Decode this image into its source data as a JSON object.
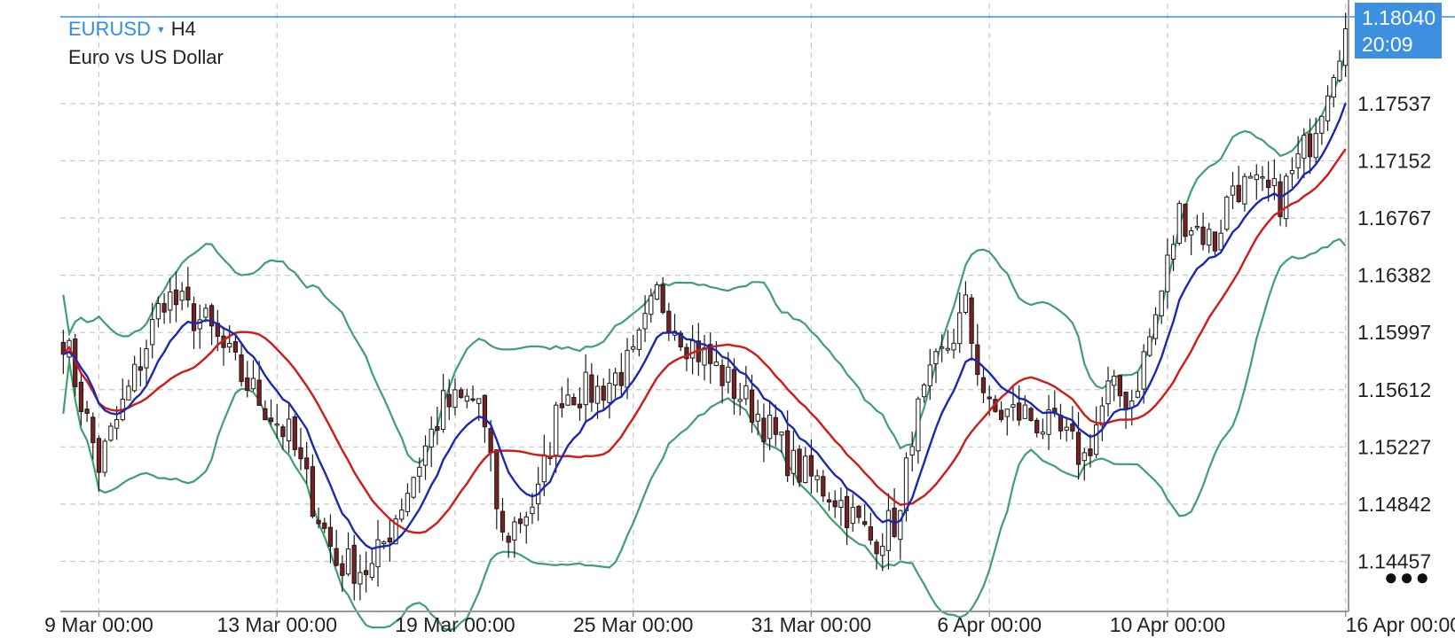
{
  "header": {
    "symbol": "EURUSD",
    "timeframe": "H4",
    "description": "Euro vs US Dollar"
  },
  "current_price": {
    "price": "1.18040",
    "countdown": "20:09",
    "value": 1.1804
  },
  "colors": {
    "grid": "#c8c8c8",
    "axis": "#999999",
    "candle_bull": "#ffffff",
    "candle_bear": "#7a2020",
    "candle_outline": "#1a1a1a",
    "ma_fast": "#1b28b0",
    "ma_slow": "#d21c1c",
    "bollinger": "#3fa06e",
    "current_price_line": "#3d8fe0"
  },
  "more_icon": "more-dots-icon",
  "chart_data": {
    "type": "candlestick",
    "instrument": "EURUSD",
    "timeframe": "H4",
    "y_ticks": [
      "1.17537",
      "1.17152",
      "1.16767",
      "1.16382",
      "1.15997",
      "1.15612",
      "1.15227",
      "1.14842",
      "1.14457"
    ],
    "y_tick_values": [
      1.17537,
      1.17152,
      1.16767,
      1.16382,
      1.15997,
      1.15612,
      1.15227,
      1.14842,
      1.14457
    ],
    "ylim": [
      1.1412,
      1.1821
    ],
    "x_tick_labels": [
      "9 Mar 00:00",
      "13 Mar 00:00",
      "19 Mar 00:00",
      "25 Mar 00:00",
      "31 Mar 00:00",
      "6 Apr 00:00",
      "10 Apr 00:00",
      "16 Apr 00:00"
    ],
    "x_tick_bars": [
      6,
      36,
      66,
      96,
      126,
      156,
      186,
      216
    ],
    "bar_count": 217,
    "grid": true,
    "series_close_anchors": [
      [
        0,
        1.1598
      ],
      [
        6,
        1.151
      ],
      [
        12,
        1.157
      ],
      [
        17,
        1.1625
      ],
      [
        24,
        1.1605
      ],
      [
        30,
        1.157
      ],
      [
        38,
        1.153
      ],
      [
        46,
        1.1445
      ],
      [
        52,
        1.144
      ],
      [
        58,
        1.1495
      ],
      [
        64,
        1.155
      ],
      [
        70,
        1.1555
      ],
      [
        74,
        1.146
      ],
      [
        80,
        1.149
      ],
      [
        84,
        1.156
      ],
      [
        90,
        1.156
      ],
      [
        96,
        1.158
      ],
      [
        100,
        1.1625
      ],
      [
        105,
        1.1595
      ],
      [
        110,
        1.1575
      ],
      [
        117,
        1.1545
      ],
      [
        123,
        1.151
      ],
      [
        130,
        1.149
      ],
      [
        136,
        1.146
      ],
      [
        141,
        1.1475
      ],
      [
        143,
        1.1535
      ],
      [
        147,
        1.1575
      ],
      [
        152,
        1.1615
      ],
      [
        153,
        1.1595
      ],
      [
        156,
        1.1545
      ],
      [
        162,
        1.1545
      ],
      [
        168,
        1.153
      ],
      [
        172,
        1.1515
      ],
      [
        176,
        1.156
      ],
      [
        180,
        1.1555
      ],
      [
        184,
        1.161
      ],
      [
        188,
        1.168
      ],
      [
        194,
        1.166
      ],
      [
        197,
        1.17
      ],
      [
        205,
        1.169
      ],
      [
        210,
        1.173
      ],
      [
        215,
        1.1795
      ],
      [
        216,
        1.1804
      ]
    ],
    "indicators": [
      {
        "name": "ma_fast",
        "kind": "moving-average",
        "period": 10
      },
      {
        "name": "ma_slow",
        "kind": "moving-average",
        "period": 20
      },
      {
        "name": "bollinger",
        "kind": "bollinger-bands",
        "period": 20,
        "deviation": 2
      }
    ]
  }
}
